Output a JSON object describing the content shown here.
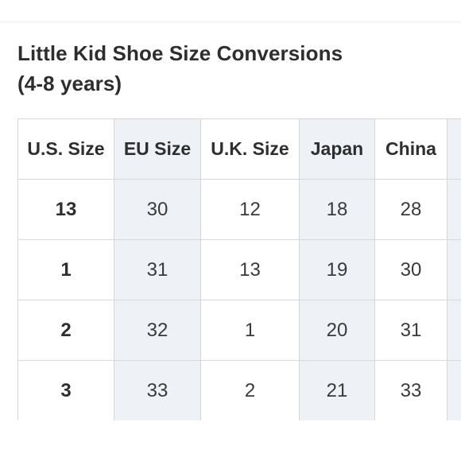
{
  "title": {
    "line1": "Little Kid Shoe Size Conversions",
    "line2": "(4-8 years)"
  },
  "table": {
    "headers": [
      "U.S. Size",
      "EU Size",
      "U.K. Size",
      "Japan",
      "China",
      ""
    ],
    "rows": [
      [
        "13",
        "30",
        "12",
        "18",
        "28",
        ""
      ],
      [
        "1",
        "31",
        "13",
        "19",
        "30",
        ""
      ],
      [
        "2",
        "32",
        "1",
        "20",
        "31",
        ""
      ],
      [
        "3",
        "33",
        "2",
        "21",
        "33",
        ""
      ]
    ],
    "shaded_columns": [
      1,
      3,
      5
    ]
  },
  "colors": {
    "shaded_column_bg": "#eef2f6",
    "border": "#d7d7d7",
    "text": "#2e2e2e"
  }
}
